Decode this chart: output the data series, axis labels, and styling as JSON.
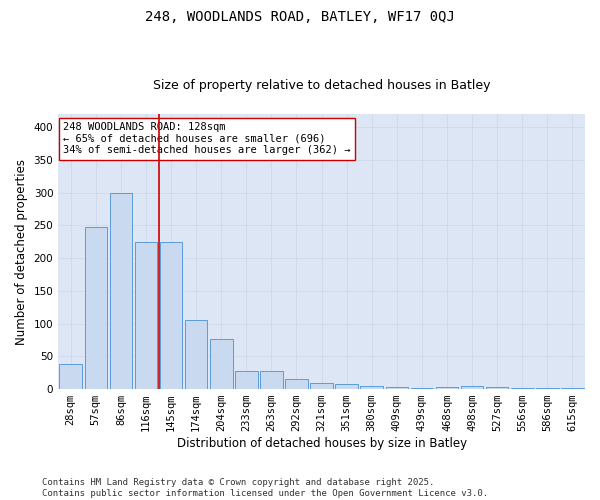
{
  "title1": "248, WOODLANDS ROAD, BATLEY, WF17 0QJ",
  "title2": "Size of property relative to detached houses in Batley",
  "xlabel": "Distribution of detached houses by size in Batley",
  "ylabel": "Number of detached properties",
  "categories": [
    "28sqm",
    "57sqm",
    "86sqm",
    "116sqm",
    "145sqm",
    "174sqm",
    "204sqm",
    "233sqm",
    "263sqm",
    "292sqm",
    "321sqm",
    "351sqm",
    "380sqm",
    "409sqm",
    "439sqm",
    "468sqm",
    "498sqm",
    "527sqm",
    "556sqm",
    "586sqm",
    "615sqm"
  ],
  "values": [
    38,
    248,
    300,
    224,
    224,
    105,
    77,
    28,
    27,
    16,
    10,
    8,
    5,
    3,
    2,
    3,
    4,
    3,
    2,
    1,
    2
  ],
  "bar_color": "#c9d9f0",
  "bar_edge_color": "#5b9bd5",
  "grid_color": "#d0d8e8",
  "background_color": "#dce6f5",
  "annotation_line1": "248 WOODLANDS ROAD: 128sqm",
  "annotation_line2": "← 65% of detached houses are smaller (696)",
  "annotation_line3": "34% of semi-detached houses are larger (362) →",
  "vline_color": "#cc0000",
  "box_color": "#cc0000",
  "ylim": [
    0,
    420
  ],
  "yticks": [
    0,
    50,
    100,
    150,
    200,
    250,
    300,
    350,
    400
  ],
  "footer": "Contains HM Land Registry data © Crown copyright and database right 2025.\nContains public sector information licensed under the Open Government Licence v3.0.",
  "title1_fontsize": 10,
  "title2_fontsize": 9,
  "xlabel_fontsize": 8.5,
  "ylabel_fontsize": 8.5,
  "tick_fontsize": 7.5,
  "annot_fontsize": 7.5,
  "footer_fontsize": 6.5
}
